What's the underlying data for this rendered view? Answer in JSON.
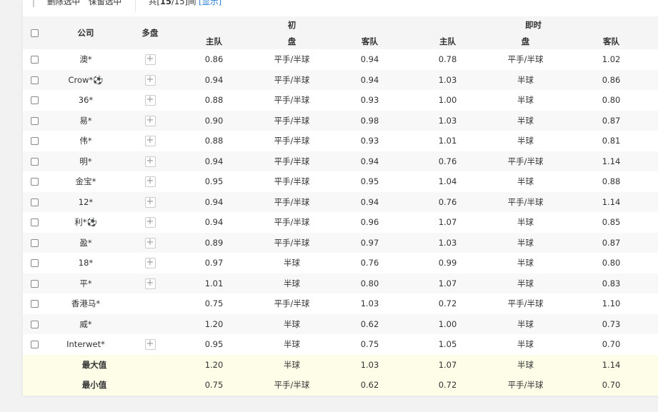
{
  "toolbar": {
    "delete_selected": "删除选中",
    "keep_selected": "保留选中",
    "count_prefix": "共[",
    "count_shown": "15",
    "count_total": "/15]间",
    "show_link": "[显示]"
  },
  "header": {
    "company": "公司",
    "multi": "多盘",
    "initial": "初",
    "live": "即时",
    "home": "主队",
    "line": "盘",
    "away": "客队"
  },
  "rows": [
    {
      "company": "澳*",
      "multi": true,
      "i_home": "0.86",
      "i_line": "平手/半球",
      "i_away": "0.94",
      "l_home": "0.78",
      "l_line": "平手/半球",
      "l_away": "1.02"
    },
    {
      "company": "Crow*⚽",
      "multi": true,
      "i_home": "0.94",
      "i_line": "平手/半球",
      "i_away": "0.94",
      "l_home": "1.03",
      "l_line": "半球",
      "l_away": "0.86"
    },
    {
      "company": "36*",
      "multi": true,
      "i_home": "0.88",
      "i_line": "平手/半球",
      "i_away": "0.93",
      "l_home": "1.00",
      "l_line": "半球",
      "l_away": "0.80"
    },
    {
      "company": "易*",
      "multi": true,
      "i_home": "0.90",
      "i_line": "平手/半球",
      "i_away": "0.98",
      "l_home": "1.03",
      "l_line": "半球",
      "l_away": "0.87"
    },
    {
      "company": "伟*",
      "multi": true,
      "i_home": "0.88",
      "i_line": "平手/半球",
      "i_away": "0.93",
      "l_home": "1.01",
      "l_line": "半球",
      "l_away": "0.81"
    },
    {
      "company": "明*",
      "multi": true,
      "i_home": "0.94",
      "i_line": "平手/半球",
      "i_away": "0.94",
      "l_home": "0.76",
      "l_line": "平手/半球",
      "l_away": "1.14"
    },
    {
      "company": "金宝*",
      "multi": true,
      "i_home": "0.95",
      "i_line": "平手/半球",
      "i_away": "0.95",
      "l_home": "1.04",
      "l_line": "半球",
      "l_away": "0.88"
    },
    {
      "company": "12*",
      "multi": true,
      "i_home": "0.94",
      "i_line": "平手/半球",
      "i_away": "0.94",
      "l_home": "0.76",
      "l_line": "平手/半球",
      "l_away": "1.14"
    },
    {
      "company": "利*⚽",
      "multi": true,
      "i_home": "0.94",
      "i_line": "平手/半球",
      "i_away": "0.96",
      "l_home": "1.07",
      "l_line": "半球",
      "l_away": "0.85"
    },
    {
      "company": "盈*",
      "multi": true,
      "i_home": "0.89",
      "i_line": "平手/半球",
      "i_away": "0.97",
      "l_home": "1.03",
      "l_line": "半球",
      "l_away": "0.87"
    },
    {
      "company": "18*",
      "multi": true,
      "i_home": "0.97",
      "i_line": "半球",
      "i_away": "0.76",
      "l_home": "0.99",
      "l_line": "半球",
      "l_away": "0.80"
    },
    {
      "company": "平*",
      "multi": true,
      "i_home": "1.01",
      "i_line": "半球",
      "i_away": "0.80",
      "l_home": "1.07",
      "l_line": "半球",
      "l_away": "0.83"
    },
    {
      "company": "香港马*",
      "multi": false,
      "i_home": "0.75",
      "i_line": "平手/半球",
      "i_away": "1.03",
      "l_home": "0.72",
      "l_line": "平手/半球",
      "l_away": "1.10"
    },
    {
      "company": "威*",
      "multi": false,
      "i_home": "1.20",
      "i_line": "半球",
      "i_away": "0.62",
      "l_home": "1.00",
      "l_line": "半球",
      "l_away": "0.73"
    },
    {
      "company": "Interwet*",
      "multi": true,
      "i_home": "0.95",
      "i_line": "半球",
      "i_away": "0.75",
      "l_home": "1.05",
      "l_line": "半球",
      "l_away": "0.70"
    }
  ],
  "summary": [
    {
      "label": "最大值",
      "i_home": "1.20",
      "i_line": "半球",
      "i_away": "1.03",
      "l_home": "1.07",
      "l_line": "半球",
      "l_away": "1.14"
    },
    {
      "label": "最小值",
      "i_home": "0.75",
      "i_line": "平手/半球",
      "i_away": "0.62",
      "l_home": "0.72",
      "l_line": "平手/半球",
      "l_away": "0.70"
    }
  ]
}
